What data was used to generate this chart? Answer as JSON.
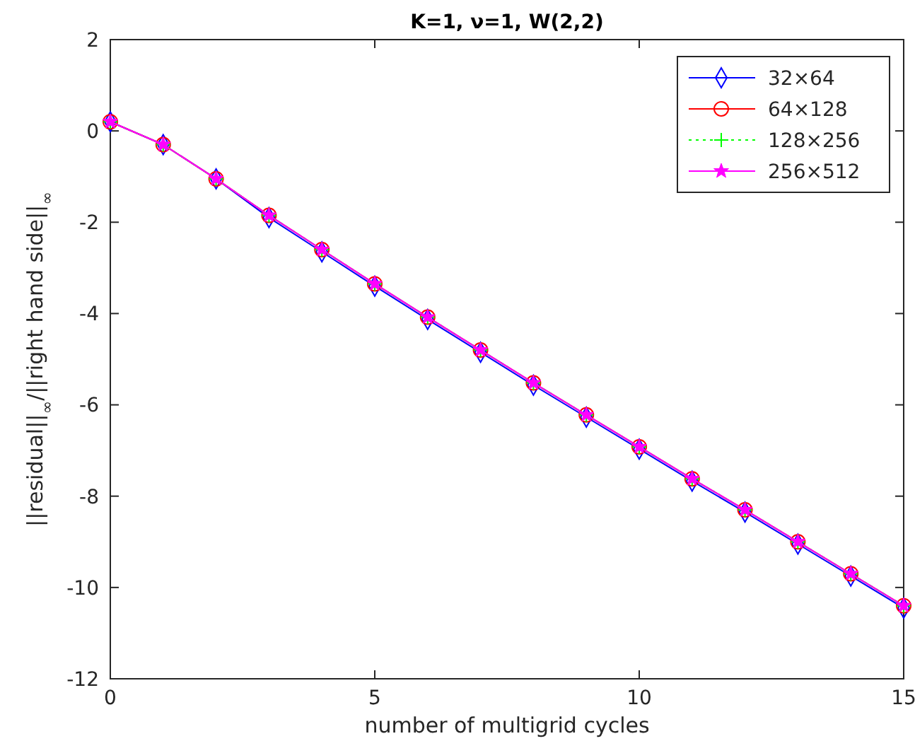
{
  "chart_data": {
    "type": "line",
    "title": "K=1, ν=1, W(2,2)",
    "xlabel": "number of multigrid cycles",
    "ylabel": "||residual||$_{∞}$/||right hand side||$_{∞}$",
    "x": [
      0,
      1,
      2,
      3,
      4,
      5,
      6,
      7,
      8,
      9,
      10,
      11,
      12,
      13,
      14,
      15
    ],
    "xlim": [
      0,
      15
    ],
    "xticks": [
      0,
      5,
      10,
      15
    ],
    "ylim": [
      -12,
      2
    ],
    "yticks": [
      -12,
      -10,
      -8,
      -6,
      -4,
      -2,
      0,
      2
    ],
    "grid": false,
    "legend": "top right",
    "series": [
      {
        "name": "32×64",
        "color": "#0000ff",
        "marker": "diamond",
        "line_style": "solid",
        "values": [
          0.2,
          -0.3,
          -1.05,
          -1.9,
          -2.65,
          -3.4,
          -4.13,
          -4.85,
          -5.57,
          -6.27,
          -6.97,
          -7.67,
          -8.35,
          -9.05,
          -9.75,
          -10.45
        ]
      },
      {
        "name": "64×128",
        "color": "#ff0000",
        "marker": "circle",
        "line_style": "solid",
        "values": [
          0.2,
          -0.3,
          -1.05,
          -1.85,
          -2.6,
          -3.35,
          -4.08,
          -4.8,
          -5.52,
          -6.22,
          -6.92,
          -7.62,
          -8.3,
          -9.0,
          -9.7,
          -10.4
        ]
      },
      {
        "name": "128×256",
        "color": "#00ff00",
        "marker": "cross",
        "line_style": "dotted",
        "values": [
          0.2,
          -0.3,
          -1.05,
          -1.85,
          -2.6,
          -3.35,
          -4.08,
          -4.8,
          -5.52,
          -6.22,
          -6.92,
          -7.62,
          -8.3,
          -9.0,
          -9.7,
          -10.4
        ]
      },
      {
        "name": "256×512",
        "color": "#ff00ff",
        "marker": "star",
        "line_style": "solid",
        "values": [
          0.2,
          -0.3,
          -1.05,
          -1.85,
          -2.6,
          -3.35,
          -4.08,
          -4.8,
          -5.52,
          -6.22,
          -6.92,
          -7.62,
          -8.3,
          -9.0,
          -9.7,
          -10.4
        ]
      }
    ]
  }
}
